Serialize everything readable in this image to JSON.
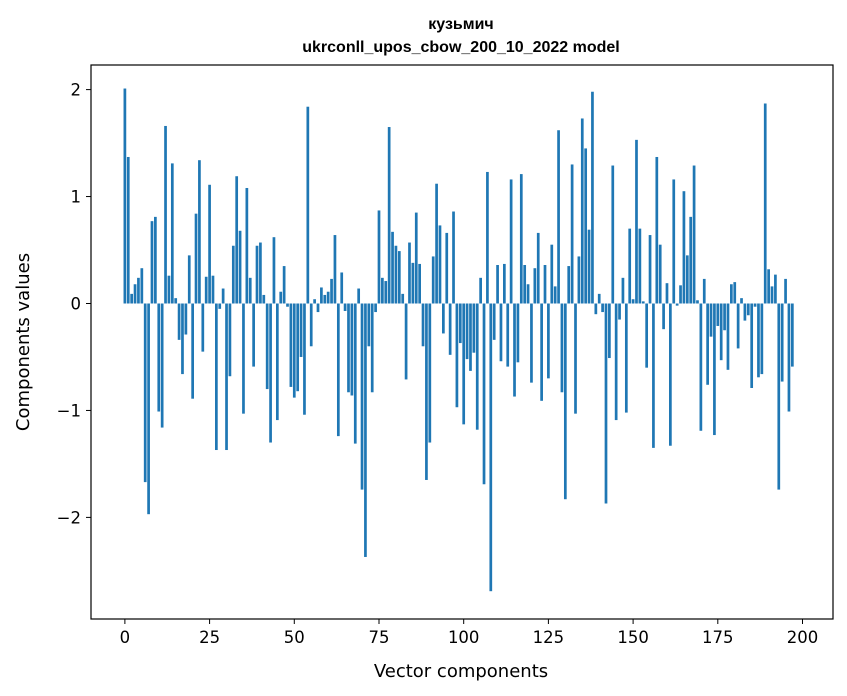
{
  "chart_data": {
    "type": "bar",
    "title": "кузьмич",
    "subtitle": "ukrconll_upos_cbow_200_10_2022 model",
    "xlabel": "Vector components",
    "ylabel": "Components values",
    "xlim": [
      -10,
      209
    ],
    "ylim": [
      -2.95,
      2.23
    ],
    "xticks": [
      0,
      25,
      50,
      75,
      100,
      125,
      150,
      175,
      200
    ],
    "yticks": [
      -2,
      -1,
      0,
      1,
      2
    ],
    "ytick_labels": [
      "−2",
      "−1",
      "0",
      "1",
      "2"
    ],
    "bar_color": "#1f77b4",
    "grid": false,
    "values": [
      2.01,
      1.37,
      0.09,
      0.18,
      0.24,
      0.33,
      -1.67,
      -1.97,
      0.77,
      0.81,
      -1.01,
      -1.16,
      1.66,
      0.26,
      1.31,
      0.05,
      -0.34,
      -0.66,
      -0.29,
      0.45,
      -0.89,
      0.84,
      1.34,
      -0.45,
      0.25,
      1.11,
      0.26,
      -1.37,
      -0.05,
      0.14,
      -1.37,
      -0.68,
      0.54,
      1.19,
      0.68,
      -1.03,
      1.08,
      0.24,
      -0.59,
      0.54,
      0.57,
      0.08,
      -0.8,
      -1.3,
      0.62,
      -1.09,
      0.11,
      0.35,
      -0.03,
      -0.78,
      -0.88,
      -0.82,
      -0.5,
      -1.04,
      1.84,
      -0.4,
      0.04,
      -0.08,
      0.15,
      0.08,
      0.11,
      0.23,
      0.64,
      -1.24,
      0.29,
      -0.07,
      -0.83,
      -0.86,
      -1.31,
      0.14,
      -1.74,
      -2.37,
      -0.4,
      -0.83,
      -0.08,
      0.87,
      0.24,
      0.21,
      1.65,
      0.67,
      0.54,
      0.49,
      0.09,
      -0.71,
      0.57,
      0.38,
      0.85,
      0.37,
      -0.4,
      -1.65,
      -1.3,
      0.44,
      1.12,
      0.73,
      -0.28,
      0.66,
      -0.48,
      0.86,
      -0.97,
      -0.37,
      -1.13,
      -0.52,
      -0.63,
      -0.46,
      -1.18,
      0.24,
      -1.69,
      1.23,
      -2.69,
      -0.34,
      0.36,
      -0.54,
      0.37,
      -0.59,
      1.16,
      -0.87,
      -0.55,
      1.21,
      0.36,
      0.18,
      -0.74,
      0.33,
      0.66,
      -0.91,
      0.36,
      -0.7,
      0.55,
      0.16,
      1.62,
      -0.83,
      -1.83,
      0.35,
      1.3,
      -1.03,
      0.44,
      1.73,
      1.45,
      0.69,
      1.98,
      -0.1,
      0.09,
      -0.08,
      -1.87,
      -0.51,
      1.29,
      -1.09,
      -0.15,
      0.24,
      -1.02,
      0.7,
      0.04,
      1.53,
      0.7,
      0.02,
      -0.6,
      0.64,
      -1.35,
      1.37,
      0.55,
      -0.24,
      0.19,
      -1.33,
      1.16,
      -0.02,
      0.17,
      1.05,
      0.45,
      0.81,
      1.29,
      0.03,
      -1.19,
      0.23,
      -0.76,
      -0.31,
      -1.23,
      -0.21,
      -0.53,
      -0.25,
      -0.62,
      0.18,
      0.2,
      -0.42,
      0.05,
      -0.16,
      -0.11,
      -0.79,
      -0.03,
      -0.69,
      -0.66,
      1.87,
      0.32,
      0.16,
      0.27,
      -1.74,
      -0.73,
      0.23,
      -1.01,
      -0.59
    ]
  }
}
